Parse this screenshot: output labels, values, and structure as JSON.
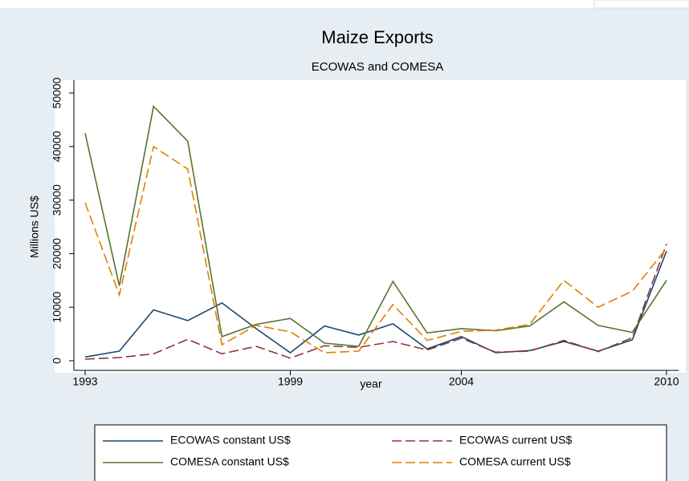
{
  "chart_data": {
    "type": "line",
    "title": "Maize Exports",
    "subtitle": "ECOWAS and COMESA",
    "x_label": "year",
    "y_label": "Millions US$",
    "x": [
      1993,
      1994,
      1995,
      1996,
      1997,
      1998,
      1999,
      2000,
      2001,
      2002,
      2003,
      2004,
      2005,
      2006,
      2007,
      2008,
      2009,
      2010
    ],
    "series": [
      {
        "name": "ECOWAS constant US$",
        "color": "#1a476f",
        "dash": "solid",
        "values": [
          700,
          1800,
          9500,
          7500,
          10800,
          6000,
          1500,
          6500,
          4800,
          6900,
          2200,
          4500,
          1500,
          1900,
          3600,
          1800,
          3900,
          20500
        ]
      },
      {
        "name": "ECOWAS current US$",
        "color": "#90353b",
        "dash": "dashed",
        "values": [
          300,
          600,
          1300,
          4000,
          1300,
          2700,
          500,
          2800,
          2500,
          3600,
          2000,
          4200,
          1600,
          1800,
          3800,
          1700,
          4300,
          21800
        ]
      },
      {
        "name": "COMESA constant US$",
        "color": "#55752f",
        "dash": "solid",
        "values": [
          42500,
          14000,
          47500,
          41000,
          4500,
          6800,
          7900,
          3300,
          2700,
          14800,
          5200,
          6000,
          5600,
          6500,
          11000,
          6600,
          5300,
          15000
        ]
      },
      {
        "name": "COMESA current US$",
        "color": "#e37e00",
        "dash": "dashed",
        "values": [
          29500,
          12300,
          40000,
          35800,
          3000,
          6600,
          5400,
          1500,
          1800,
          10500,
          3800,
          5500,
          5700,
          6800,
          15000,
          10000,
          13000,
          21000
        ]
      }
    ],
    "xlim": [
      1993,
      2010
    ],
    "xticks": [
      1993,
      1999,
      2004,
      2010
    ],
    "ylim": [
      0,
      50000
    ],
    "yticks": [
      0,
      10000,
      20000,
      30000,
      40000,
      50000
    ],
    "grid": false,
    "legend_position": "bottom"
  }
}
